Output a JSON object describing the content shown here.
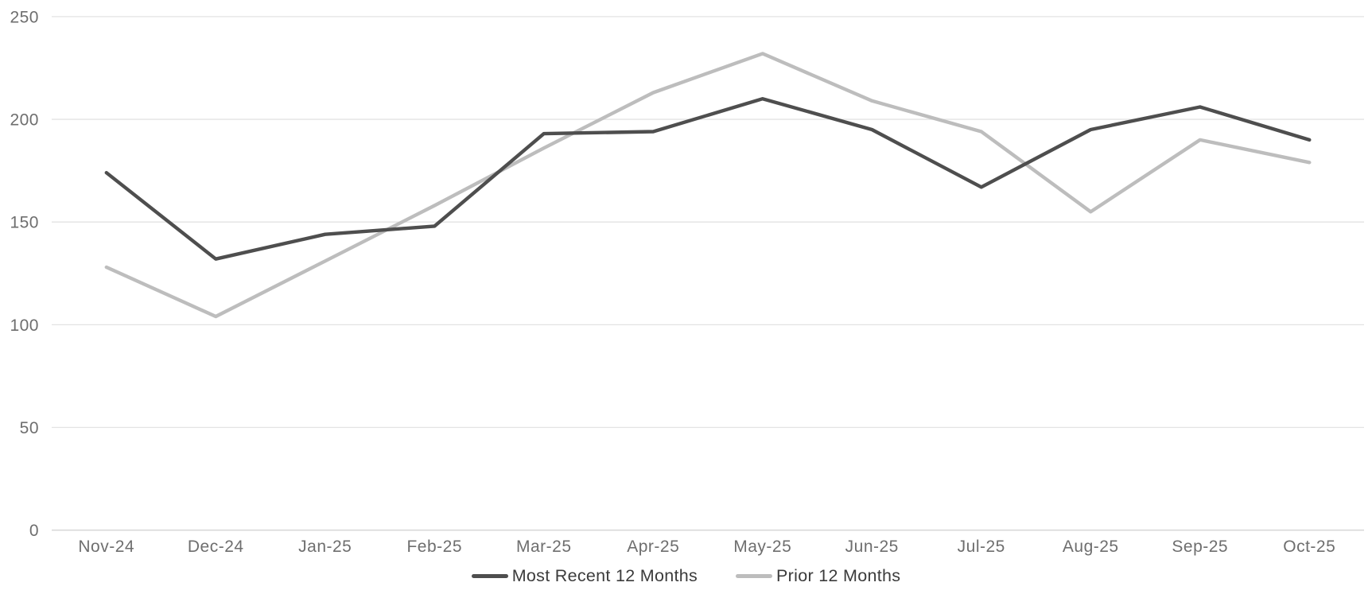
{
  "chart_data": {
    "type": "line",
    "categories": [
      "Nov-24",
      "Dec-24",
      "Jan-25",
      "Feb-25",
      "Mar-25",
      "Apr-25",
      "May-25",
      "Jun-25",
      "Jul-25",
      "Aug-25",
      "Sep-25",
      "Oct-25"
    ],
    "series": [
      {
        "name": "Most Recent 12 Months",
        "color": "#4e4e4e",
        "values": [
          174,
          132,
          144,
          148,
          193,
          194,
          210,
          195,
          167,
          195,
          206,
          190
        ]
      },
      {
        "name": "Prior 12 Months",
        "color": "#bdbdbd",
        "values": [
          128,
          104,
          131,
          158,
          186,
          213,
          232,
          209,
          194,
          155,
          190,
          179
        ]
      }
    ],
    "xlabel": "",
    "ylabel": "",
    "ylim": [
      0,
      250
    ],
    "yticks": [
      0,
      50,
      100,
      150,
      200,
      250
    ],
    "grid": "horizontal-only",
    "legend_position": "bottom-center",
    "styles": {
      "background": "#ffffff",
      "gridline_color": "#e3e3e3",
      "axis_line_color": "#d9d9d9",
      "tick_label_color": "#6e6e6e",
      "legend_text_color": "#3b3b3b",
      "line_width": 4.4
    }
  }
}
